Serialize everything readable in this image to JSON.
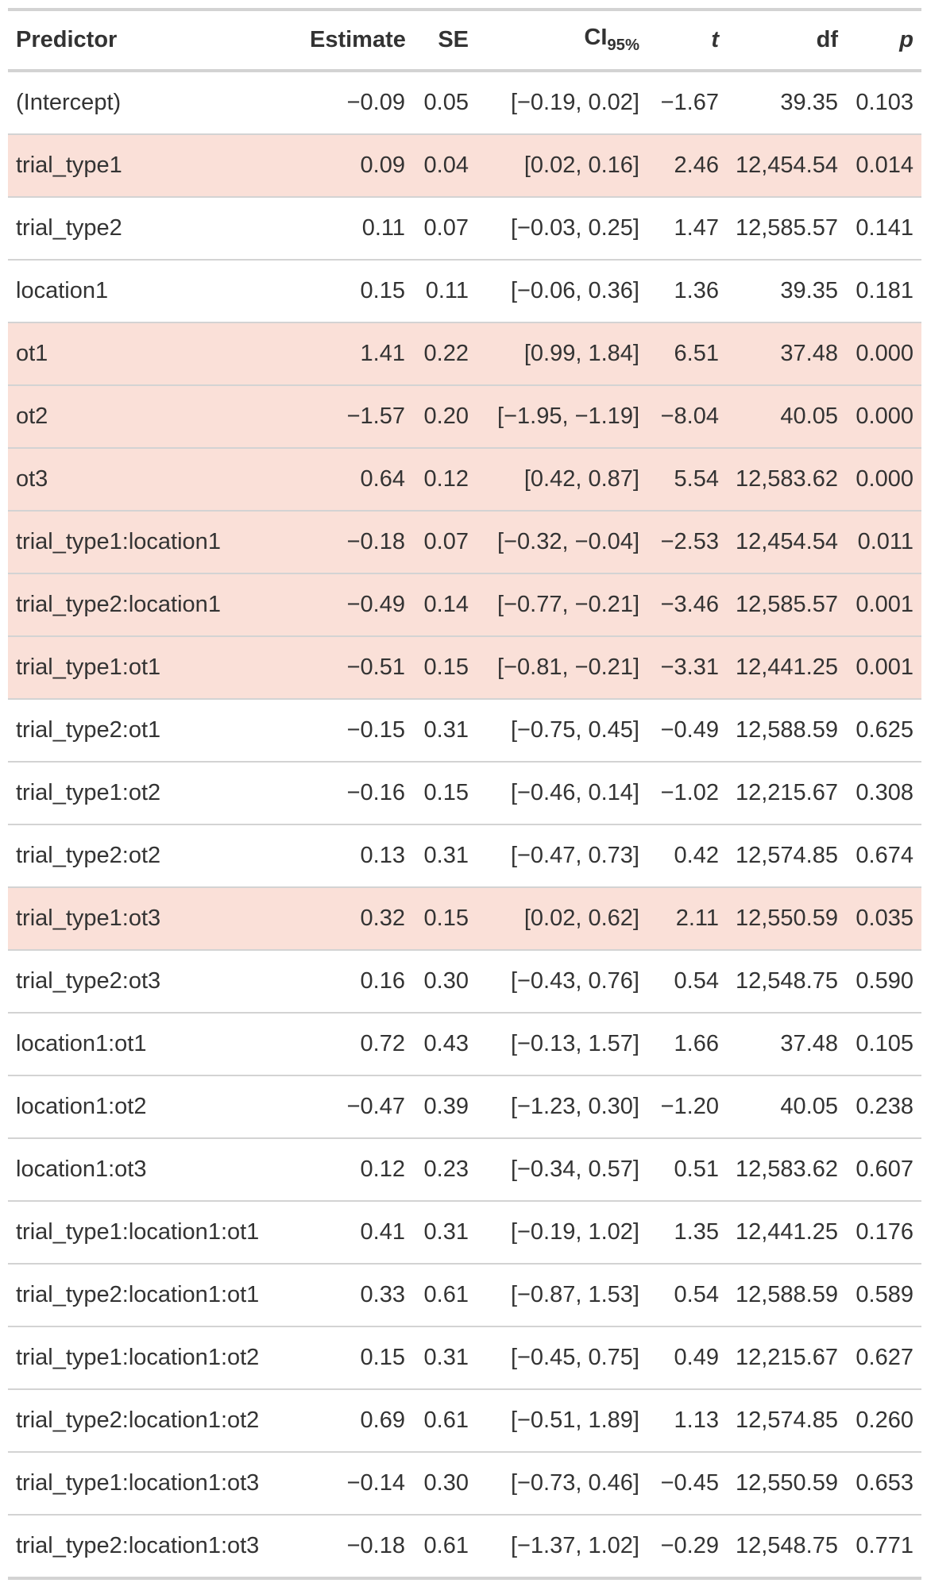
{
  "table": {
    "headers": {
      "predictor": "Predictor",
      "estimate": "Estimate",
      "se": "SE",
      "ci_main": "CI",
      "ci_sub": "95%",
      "t": "t",
      "df": "df",
      "p": "p"
    },
    "highlight_color": "#fae0d8",
    "rows": [
      {
        "predictor": "(Intercept)",
        "estimate": "−0.09",
        "se": "0.05",
        "ci": "[−0.19, 0.02]",
        "t": "−1.67",
        "df": "39.35",
        "p": "0.103",
        "highlighted": false
      },
      {
        "predictor": "trial_type1",
        "estimate": "0.09",
        "se": "0.04",
        "ci": "[0.02, 0.16]",
        "t": "2.46",
        "df": "12,454.54",
        "p": "0.014",
        "highlighted": true
      },
      {
        "predictor": "trial_type2",
        "estimate": "0.11",
        "se": "0.07",
        "ci": "[−0.03, 0.25]",
        "t": "1.47",
        "df": "12,585.57",
        "p": "0.141",
        "highlighted": false
      },
      {
        "predictor": "location1",
        "estimate": "0.15",
        "se": "0.11",
        "ci": "[−0.06, 0.36]",
        "t": "1.36",
        "df": "39.35",
        "p": "0.181",
        "highlighted": false
      },
      {
        "predictor": "ot1",
        "estimate": "1.41",
        "se": "0.22",
        "ci": "[0.99, 1.84]",
        "t": "6.51",
        "df": "37.48",
        "p": "0.000",
        "highlighted": true
      },
      {
        "predictor": "ot2",
        "estimate": "−1.57",
        "se": "0.20",
        "ci": "[−1.95, −1.19]",
        "t": "−8.04",
        "df": "40.05",
        "p": "0.000",
        "highlighted": true
      },
      {
        "predictor": "ot3",
        "estimate": "0.64",
        "se": "0.12",
        "ci": "[0.42, 0.87]",
        "t": "5.54",
        "df": "12,583.62",
        "p": "0.000",
        "highlighted": true
      },
      {
        "predictor": "trial_type1:location1",
        "estimate": "−0.18",
        "se": "0.07",
        "ci": "[−0.32, −0.04]",
        "t": "−2.53",
        "df": "12,454.54",
        "p": "0.011",
        "highlighted": true
      },
      {
        "predictor": "trial_type2:location1",
        "estimate": "−0.49",
        "se": "0.14",
        "ci": "[−0.77, −0.21]",
        "t": "−3.46",
        "df": "12,585.57",
        "p": "0.001",
        "highlighted": true
      },
      {
        "predictor": "trial_type1:ot1",
        "estimate": "−0.51",
        "se": "0.15",
        "ci": "[−0.81, −0.21]",
        "t": "−3.31",
        "df": "12,441.25",
        "p": "0.001",
        "highlighted": true
      },
      {
        "predictor": "trial_type2:ot1",
        "estimate": "−0.15",
        "se": "0.31",
        "ci": "[−0.75, 0.45]",
        "t": "−0.49",
        "df": "12,588.59",
        "p": "0.625",
        "highlighted": false
      },
      {
        "predictor": "trial_type1:ot2",
        "estimate": "−0.16",
        "se": "0.15",
        "ci": "[−0.46, 0.14]",
        "t": "−1.02",
        "df": "12,215.67",
        "p": "0.308",
        "highlighted": false
      },
      {
        "predictor": "trial_type2:ot2",
        "estimate": "0.13",
        "se": "0.31",
        "ci": "[−0.47, 0.73]",
        "t": "0.42",
        "df": "12,574.85",
        "p": "0.674",
        "highlighted": false
      },
      {
        "predictor": "trial_type1:ot3",
        "estimate": "0.32",
        "se": "0.15",
        "ci": "[0.02, 0.62]",
        "t": "2.11",
        "df": "12,550.59",
        "p": "0.035",
        "highlighted": true
      },
      {
        "predictor": "trial_type2:ot3",
        "estimate": "0.16",
        "se": "0.30",
        "ci": "[−0.43, 0.76]",
        "t": "0.54",
        "df": "12,548.75",
        "p": "0.590",
        "highlighted": false
      },
      {
        "predictor": "location1:ot1",
        "estimate": "0.72",
        "se": "0.43",
        "ci": "[−0.13, 1.57]",
        "t": "1.66",
        "df": "37.48",
        "p": "0.105",
        "highlighted": false
      },
      {
        "predictor": "location1:ot2",
        "estimate": "−0.47",
        "se": "0.39",
        "ci": "[−1.23, 0.30]",
        "t": "−1.20",
        "df": "40.05",
        "p": "0.238",
        "highlighted": false
      },
      {
        "predictor": "location1:ot3",
        "estimate": "0.12",
        "se": "0.23",
        "ci": "[−0.34, 0.57]",
        "t": "0.51",
        "df": "12,583.62",
        "p": "0.607",
        "highlighted": false
      },
      {
        "predictor": "trial_type1:location1:ot1",
        "estimate": "0.41",
        "se": "0.31",
        "ci": "[−0.19, 1.02]",
        "t": "1.35",
        "df": "12,441.25",
        "p": "0.176",
        "highlighted": false
      },
      {
        "predictor": "trial_type2:location1:ot1",
        "estimate": "0.33",
        "se": "0.61",
        "ci": "[−0.87, 1.53]",
        "t": "0.54",
        "df": "12,588.59",
        "p": "0.589",
        "highlighted": false
      },
      {
        "predictor": "trial_type1:location1:ot2",
        "estimate": "0.15",
        "se": "0.31",
        "ci": "[−0.45, 0.75]",
        "t": "0.49",
        "df": "12,215.67",
        "p": "0.627",
        "highlighted": false
      },
      {
        "predictor": "trial_type2:location1:ot2",
        "estimate": "0.69",
        "se": "0.61",
        "ci": "[−0.51, 1.89]",
        "t": "1.13",
        "df": "12,574.85",
        "p": "0.260",
        "highlighted": false
      },
      {
        "predictor": "trial_type1:location1:ot3",
        "estimate": "−0.14",
        "se": "0.30",
        "ci": "[−0.73, 0.46]",
        "t": "−0.45",
        "df": "12,550.59",
        "p": "0.653",
        "highlighted": false
      },
      {
        "predictor": "trial_type2:location1:ot3",
        "estimate": "−0.18",
        "se": "0.61",
        "ci": "[−1.37, 1.02]",
        "t": "−0.29",
        "df": "12,548.75",
        "p": "0.771",
        "highlighted": false
      }
    ]
  }
}
